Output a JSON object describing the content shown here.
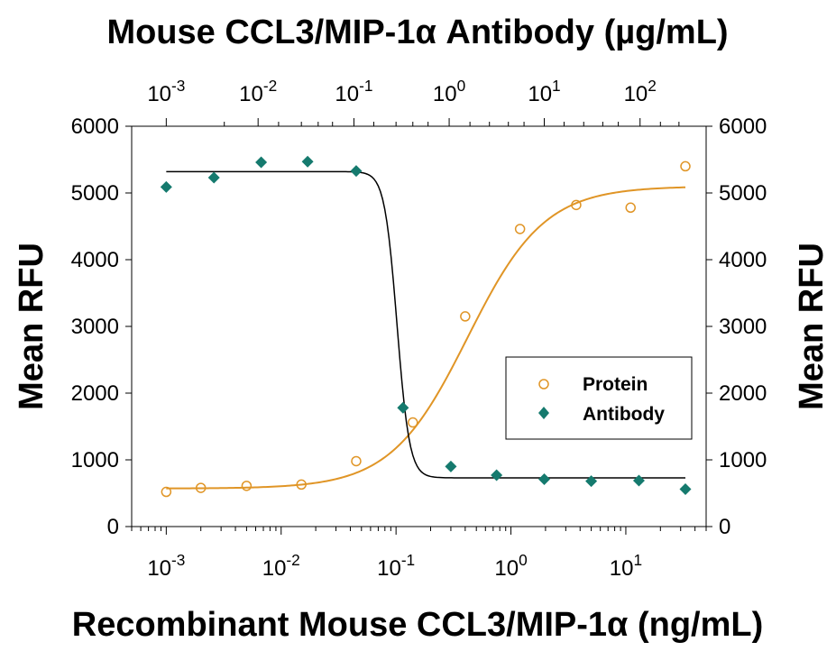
{
  "chart_data": {
    "type": "scatter",
    "top_title": "Mouse CCL3/MIP-1α Antibody (µg/mL)",
    "xlabel": "Recombinant Mouse CCL3/MIP-1α (ng/mL)",
    "ylabel_left": "Mean RFU",
    "ylabel_right": "Mean RFU",
    "x_scale": "log",
    "xlim": [
      0.0005,
      50
    ],
    "ylim": [
      0,
      6000
    ],
    "yticks": [
      0,
      1000,
      2000,
      3000,
      4000,
      5000,
      6000
    ],
    "bottom_axis": {
      "tick_exponents": [
        -3,
        -2,
        -1,
        0,
        1
      ],
      "minor_ticks": [
        0.0005,
        0.0006,
        0.0007,
        0.0008,
        0.0009,
        0.002,
        0.003,
        0.004,
        0.005,
        0.006,
        0.007,
        0.008,
        0.009,
        0.02,
        0.03,
        0.04,
        0.05,
        0.06,
        0.07,
        0.08,
        0.09,
        0.2,
        0.3,
        0.4,
        0.5,
        0.6,
        0.7,
        0.8,
        0.9,
        2,
        3,
        4,
        5,
        6,
        7,
        8,
        9,
        20,
        30,
        40,
        50
      ]
    },
    "top_axis": {
      "unit": "µg/mL",
      "tick_exponents": [
        -3,
        -2,
        -1,
        0,
        1,
        2
      ],
      "positions_in_bottom_units": [
        0.001,
        0.0063,
        0.043,
        0.29,
        1.95,
        13.3
      ],
      "minor_ticks": [
        0.0032,
        0.0095,
        0.015,
        0.021,
        0.028,
        0.064,
        0.1,
        0.14,
        0.19,
        0.44,
        0.65,
        0.95,
        1.3,
        2.9,
        4.3,
        6.3,
        8.6,
        20,
        29
      ]
    },
    "series": [
      {
        "name": "Protein",
        "marker": "open-circle",
        "color": "#E09526",
        "x": [
          0.001,
          0.002,
          0.005,
          0.015,
          0.045,
          0.14,
          0.4,
          1.2,
          3.7,
          11,
          33
        ],
        "y": [
          520,
          580,
          610,
          630,
          980,
          1560,
          3150,
          4460,
          4820,
          4780,
          5400
        ],
        "fit": {
          "bottom": 570,
          "top": 5100,
          "ec50": 0.42,
          "hill": 1.3
        }
      },
      {
        "name": "Antibody",
        "marker": "filled-diamond",
        "color": "#157A6E",
        "x": [
          0.001,
          0.0026,
          0.0067,
          0.017,
          0.045,
          0.115,
          0.3,
          0.75,
          1.95,
          5,
          13,
          33
        ],
        "y": [
          5090,
          5230,
          5460,
          5470,
          5330,
          1780,
          900,
          770,
          710,
          680,
          690,
          560
        ],
        "fit": {
          "top": 5320,
          "bottom": 730,
          "ic50": 0.102,
          "hill": 8,
          "line_color": "#000000"
        }
      }
    ],
    "legend": {
      "placement": "center-right",
      "entries": [
        "Protein",
        "Antibody"
      ]
    }
  }
}
